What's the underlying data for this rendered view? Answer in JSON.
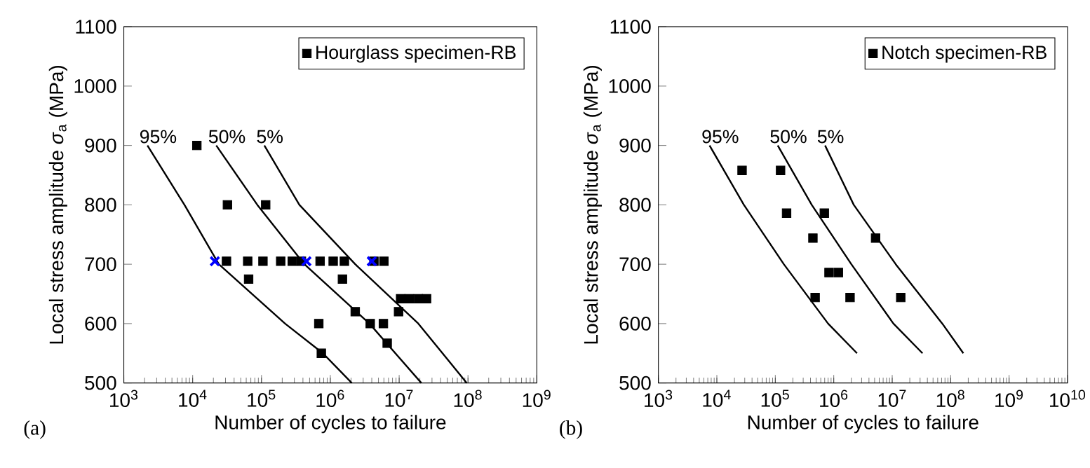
{
  "chart_data": [
    {
      "type": "scatter",
      "xlabel": "Number of cycles to failure",
      "ylabel": "Local stress amplitude *σ*$_{a}$ (MPa)",
      "annotations": [
        "(a)"
      ],
      "log": "x",
      "legend": "top right",
      "xlim": [
        1000,
        1000000000
      ],
      "ylim": [
        500,
        1100
      ],
      "xticks": [
        {
          "value": 1000,
          "label": "10$^{3}$"
        },
        {
          "value": 10000,
          "label": "10$^{4}$"
        },
        {
          "value": 100000,
          "label": "10$^{5}$"
        },
        {
          "value": 1000000,
          "label": "10$^{6}$"
        },
        {
          "value": 10000000,
          "label": "10$^{7}$"
        },
        {
          "value": 100000000,
          "label": "10$^{8}$"
        },
        {
          "value": 1000000000,
          "label": "10$^{9}$"
        }
      ],
      "yticks": [
        500,
        600,
        700,
        800,
        900,
        1000,
        1100
      ],
      "series": [
        {
          "name": "Hourglass specimen-RB",
          "color": "#000000",
          "marker": "square",
          "x": [
            11500,
            32000,
            115000,
            31000,
            63000,
            105000,
            190000,
            280000,
            380000,
            710000,
            1100000,
            1600000,
            4300000,
            6000000,
            65000,
            1500000,
            10500000,
            14000000,
            19000000,
            25000000,
            2300000,
            9800000,
            680000,
            3800000,
            5900000,
            6700000,
            740000
          ],
          "values": [
            900,
            800,
            800,
            705,
            705,
            705,
            705,
            705,
            705,
            705,
            705,
            705,
            705,
            705,
            675,
            675,
            642,
            642,
            642,
            642,
            620,
            620,
            600,
            600,
            600,
            567,
            550
          ]
        },
        {
          "type": "scatter",
          "color": "#0000ff",
          "marker": "cross",
          "x": [
            21000,
            450000,
            4000000
          ],
          "values": [
            705,
            705,
            705
          ]
        },
        {
          "type": "line",
          "name": "95%",
          "color": "#000000",
          "marker": "none",
          "x": [
            2200,
            7600,
            24000,
            220000,
            780000,
            2050000
          ],
          "values": [
            900,
            800,
            700,
            600,
            550,
            500
          ]
        },
        {
          "type": "line",
          "name": "50%",
          "color": "#000000",
          "marker": "none",
          "x": [
            22000,
            87000,
            420000,
            3700000,
            21000000
          ],
          "values": [
            900,
            800,
            700,
            600,
            500
          ]
        },
        {
          "type": "line",
          "name": "5%",
          "color": "#000000",
          "marker": "none",
          "x": [
            110000,
            355000,
            2300000,
            19000000,
            96000000
          ],
          "values": [
            900,
            800,
            700,
            600,
            500
          ]
        }
      ]
    },
    {
      "type": "scatter",
      "xlabel": "Number of cycles to failure",
      "ylabel": "Local stress amplitude *σ*$_{a}$ (MPa)",
      "annotations": [
        "(b)"
      ],
      "log": "x",
      "legend": "top right",
      "xlim": [
        1000,
        10000000000
      ],
      "ylim": [
        500,
        1100
      ],
      "xticks": [
        {
          "value": 1000,
          "label": "10$^{3}$"
        },
        {
          "value": 10000,
          "label": "10$^{4}$"
        },
        {
          "value": 100000,
          "label": "10$^{5}$"
        },
        {
          "value": 1000000,
          "label": "10$^{6}$"
        },
        {
          "value": 10000000,
          "label": "10$^{7}$"
        },
        {
          "value": 100000000,
          "label": "10$^{8}$"
        },
        {
          "value": 1000000000,
          "label": "10$^{9}$"
        },
        {
          "value": 10000000000,
          "label": "10$^{10}$"
        }
      ],
      "yticks": [
        500,
        600,
        700,
        800,
        900,
        1000,
        1100
      ],
      "series": [
        {
          "name": "Notch specimen-RB",
          "color": "#000000",
          "marker": "square",
          "x": [
            27000,
            123000,
            156000,
            690000,
            440000,
            5200000,
            830000,
            1200000,
            480000,
            1900000,
            14000000
          ],
          "values": [
            858,
            858,
            786,
            786,
            744,
            744,
            686,
            686,
            644,
            644,
            644
          ]
        },
        {
          "type": "line",
          "name": "95%",
          "color": "#000000",
          "marker": "none",
          "x": [
            7500,
            29000,
            140000,
            800000,
            2500000
          ],
          "values": [
            900,
            800,
            700,
            600,
            550
          ]
        },
        {
          "type": "line",
          "name": "50%",
          "color": "#000000",
          "marker": "none",
          "x": [
            110000,
            420000,
            2000000,
            10500000,
            33000000
          ],
          "values": [
            900,
            800,
            700,
            600,
            550
          ]
        },
        {
          "type": "line",
          "name": "5%",
          "color": "#000000",
          "marker": "none",
          "x": [
            710000,
            2200000,
            11500000,
            72000000,
            165000000
          ],
          "values": [
            900,
            800,
            700,
            600,
            550
          ]
        }
      ]
    }
  ]
}
